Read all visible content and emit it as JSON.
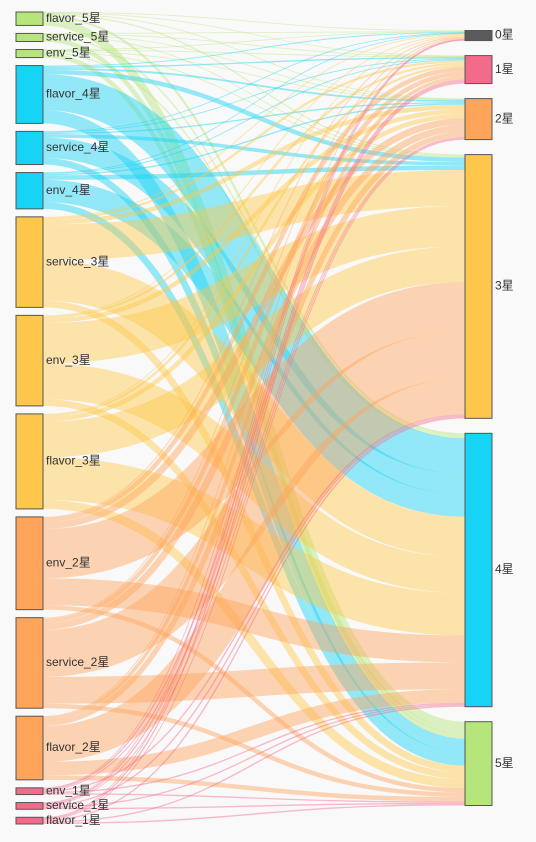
{
  "chart_data": {
    "type": "sankey",
    "colors": {
      "1星": "#f36b8b",
      "2星": "#ffa45b",
      "3星": "#fcc74a",
      "4星": "#17d3f5",
      "5星": "#b5e57b",
      "0星": "#5b5b5b"
    },
    "left_nodes": [
      {
        "id": "flavor_5星",
        "level": "5星"
      },
      {
        "id": "service_5星",
        "level": "5星"
      },
      {
        "id": "env_5星",
        "level": "5星"
      },
      {
        "id": "flavor_4星",
        "level": "4星"
      },
      {
        "id": "service_4星",
        "level": "4星"
      },
      {
        "id": "env_4星",
        "level": "4星"
      },
      {
        "id": "service_3星",
        "level": "3星"
      },
      {
        "id": "env_3星",
        "level": "3星"
      },
      {
        "id": "flavor_3星",
        "level": "3星"
      },
      {
        "id": "env_2星",
        "level": "2星"
      },
      {
        "id": "service_2星",
        "level": "2星"
      },
      {
        "id": "flavor_2星",
        "level": "2星"
      },
      {
        "id": "env_1星",
        "level": "1星"
      },
      {
        "id": "service_1星",
        "level": "1星"
      },
      {
        "id": "flavor_1星",
        "level": "1星"
      }
    ],
    "right_nodes": [
      "0星",
      "1星",
      "2星",
      "3星",
      "4星",
      "5星"
    ],
    "links": [
      {
        "source": "flavor_5星",
        "target": "0星",
        "value": 0.15
      },
      {
        "source": "flavor_5星",
        "target": "1星",
        "value": 0.15
      },
      {
        "source": "flavor_5星",
        "target": "2星",
        "value": 0.15
      },
      {
        "source": "flavor_5星",
        "target": "3星",
        "value": 0.25
      },
      {
        "source": "flavor_5星",
        "target": "4星",
        "value": 0.5
      },
      {
        "source": "flavor_5星",
        "target": "5星",
        "value": 1.8
      },
      {
        "source": "service_5星",
        "target": "0星",
        "value": 0.1
      },
      {
        "source": "service_5星",
        "target": "1星",
        "value": 0.1
      },
      {
        "source": "service_5星",
        "target": "2星",
        "value": 0.1
      },
      {
        "source": "service_5星",
        "target": "3星",
        "value": 0.2
      },
      {
        "source": "service_5星",
        "target": "4星",
        "value": 0.3
      },
      {
        "source": "service_5星",
        "target": "5星",
        "value": 1.0
      },
      {
        "source": "env_5星",
        "target": "0星",
        "value": 0.1
      },
      {
        "source": "env_5星",
        "target": "1星",
        "value": 0.1
      },
      {
        "source": "env_5星",
        "target": "2星",
        "value": 0.1
      },
      {
        "source": "env_5星",
        "target": "3星",
        "value": 0.2
      },
      {
        "source": "env_5星",
        "target": "4星",
        "value": 0.3
      },
      {
        "source": "env_5星",
        "target": "5星",
        "value": 1.0
      },
      {
        "source": "flavor_4星",
        "target": "0星",
        "value": 0.2
      },
      {
        "source": "flavor_4星",
        "target": "1星",
        "value": 0.3
      },
      {
        "source": "flavor_4星",
        "target": "2星",
        "value": 0.4
      },
      {
        "source": "flavor_4星",
        "target": "3星",
        "value": 1.0
      },
      {
        "source": "flavor_4星",
        "target": "4星",
        "value": 8.0
      },
      {
        "source": "flavor_4星",
        "target": "5星",
        "value": 3.0
      },
      {
        "source": "service_4星",
        "target": "0星",
        "value": 0.1
      },
      {
        "source": "service_4星",
        "target": "1星",
        "value": 0.2
      },
      {
        "source": "service_4星",
        "target": "2星",
        "value": 0.3
      },
      {
        "source": "service_4星",
        "target": "3星",
        "value": 0.8
      },
      {
        "source": "service_4星",
        "target": "4星",
        "value": 4.5
      },
      {
        "source": "service_4星",
        "target": "5星",
        "value": 1.5
      },
      {
        "source": "env_4星",
        "target": "0星",
        "value": 0.1
      },
      {
        "source": "env_4星",
        "target": "1星",
        "value": 0.2
      },
      {
        "source": "env_4星",
        "target": "2星",
        "value": 0.3
      },
      {
        "source": "env_4星",
        "target": "3星",
        "value": 1.0
      },
      {
        "source": "env_4星",
        "target": "4星",
        "value": 5.0
      },
      {
        "source": "env_4星",
        "target": "5星",
        "value": 1.5
      },
      {
        "source": "service_3星",
        "target": "0星",
        "value": 0.2
      },
      {
        "source": "service_3星",
        "target": "1星",
        "value": 0.5
      },
      {
        "source": "service_3星",
        "target": "2星",
        "value": 1.0
      },
      {
        "source": "service_3星",
        "target": "3星",
        "value": 8.0
      },
      {
        "source": "service_3星",
        "target": "4星",
        "value": 9.0
      },
      {
        "source": "service_3星",
        "target": "5星",
        "value": 1.5
      },
      {
        "source": "env_3星",
        "target": "0星",
        "value": 0.2
      },
      {
        "source": "env_3星",
        "target": "1星",
        "value": 0.5
      },
      {
        "source": "env_3星",
        "target": "2星",
        "value": 1.0
      },
      {
        "source": "env_3星",
        "target": "3星",
        "value": 9.0
      },
      {
        "source": "env_3星",
        "target": "4星",
        "value": 8.0
      },
      {
        "source": "env_3星",
        "target": "5星",
        "value": 1.5
      },
      {
        "source": "flavor_3星",
        "target": "0星",
        "value": 0.2
      },
      {
        "source": "flavor_3星",
        "target": "1星",
        "value": 0.5
      },
      {
        "source": "flavor_3星",
        "target": "2星",
        "value": 1.0
      },
      {
        "source": "flavor_3星",
        "target": "3星",
        "value": 8.0
      },
      {
        "source": "flavor_3星",
        "target": "4星",
        "value": 9.5
      },
      {
        "source": "flavor_3星",
        "target": "5星",
        "value": 2.0
      },
      {
        "source": "env_2星",
        "target": "0星",
        "value": 0.2
      },
      {
        "source": "env_2星",
        "target": "1星",
        "value": 1.0
      },
      {
        "source": "env_2星",
        "target": "2星",
        "value": 1.5
      },
      {
        "source": "env_2星",
        "target": "3星",
        "value": 11.0
      },
      {
        "source": "env_2星",
        "target": "4星",
        "value": 6.0
      },
      {
        "source": "env_2星",
        "target": "5星",
        "value": 1.0
      },
      {
        "source": "service_2星",
        "target": "0星",
        "value": 0.2
      },
      {
        "source": "service_2星",
        "target": "1星",
        "value": 1.0
      },
      {
        "source": "service_2星",
        "target": "2星",
        "value": 1.5
      },
      {
        "source": "service_2星",
        "target": "3星",
        "value": 10.5
      },
      {
        "source": "service_2星",
        "target": "4星",
        "value": 6.0
      },
      {
        "source": "service_2星",
        "target": "5星",
        "value": 1.0
      },
      {
        "source": "flavor_2星",
        "target": "0星",
        "value": 0.2
      },
      {
        "source": "flavor_2星",
        "target": "1星",
        "value": 0.8
      },
      {
        "source": "flavor_2星",
        "target": "2星",
        "value": 1.2
      },
      {
        "source": "flavor_2星",
        "target": "3星",
        "value": 8.0
      },
      {
        "source": "flavor_2星",
        "target": "4星",
        "value": 3.0
      },
      {
        "source": "flavor_2星",
        "target": "5星",
        "value": 1.0
      },
      {
        "source": "env_1星",
        "target": "0星",
        "value": 0.1
      },
      {
        "source": "env_1星",
        "target": "1星",
        "value": 0.3
      },
      {
        "source": "env_1星",
        "target": "2星",
        "value": 0.2
      },
      {
        "source": "env_1星",
        "target": "3星",
        "value": 0.3
      },
      {
        "source": "env_1星",
        "target": "4星",
        "value": 0.3
      },
      {
        "source": "env_1星",
        "target": "5星",
        "value": 0.3
      },
      {
        "source": "service_1星",
        "target": "0星",
        "value": 0.1
      },
      {
        "source": "service_1星",
        "target": "1星",
        "value": 0.3
      },
      {
        "source": "service_1星",
        "target": "2星",
        "value": 0.2
      },
      {
        "source": "service_1星",
        "target": "3星",
        "value": 0.3
      },
      {
        "source": "service_1星",
        "target": "4星",
        "value": 0.3
      },
      {
        "source": "service_1星",
        "target": "5星",
        "value": 0.3
      },
      {
        "source": "flavor_1星",
        "target": "0星",
        "value": 0.1
      },
      {
        "source": "flavor_1星",
        "target": "1星",
        "value": 0.3
      },
      {
        "source": "flavor_1星",
        "target": "2星",
        "value": 0.2
      },
      {
        "source": "flavor_1星",
        "target": "3星",
        "value": 0.3
      },
      {
        "source": "flavor_1星",
        "target": "4星",
        "value": 0.3
      },
      {
        "source": "flavor_1星",
        "target": "5星",
        "value": 0.3
      }
    ]
  }
}
